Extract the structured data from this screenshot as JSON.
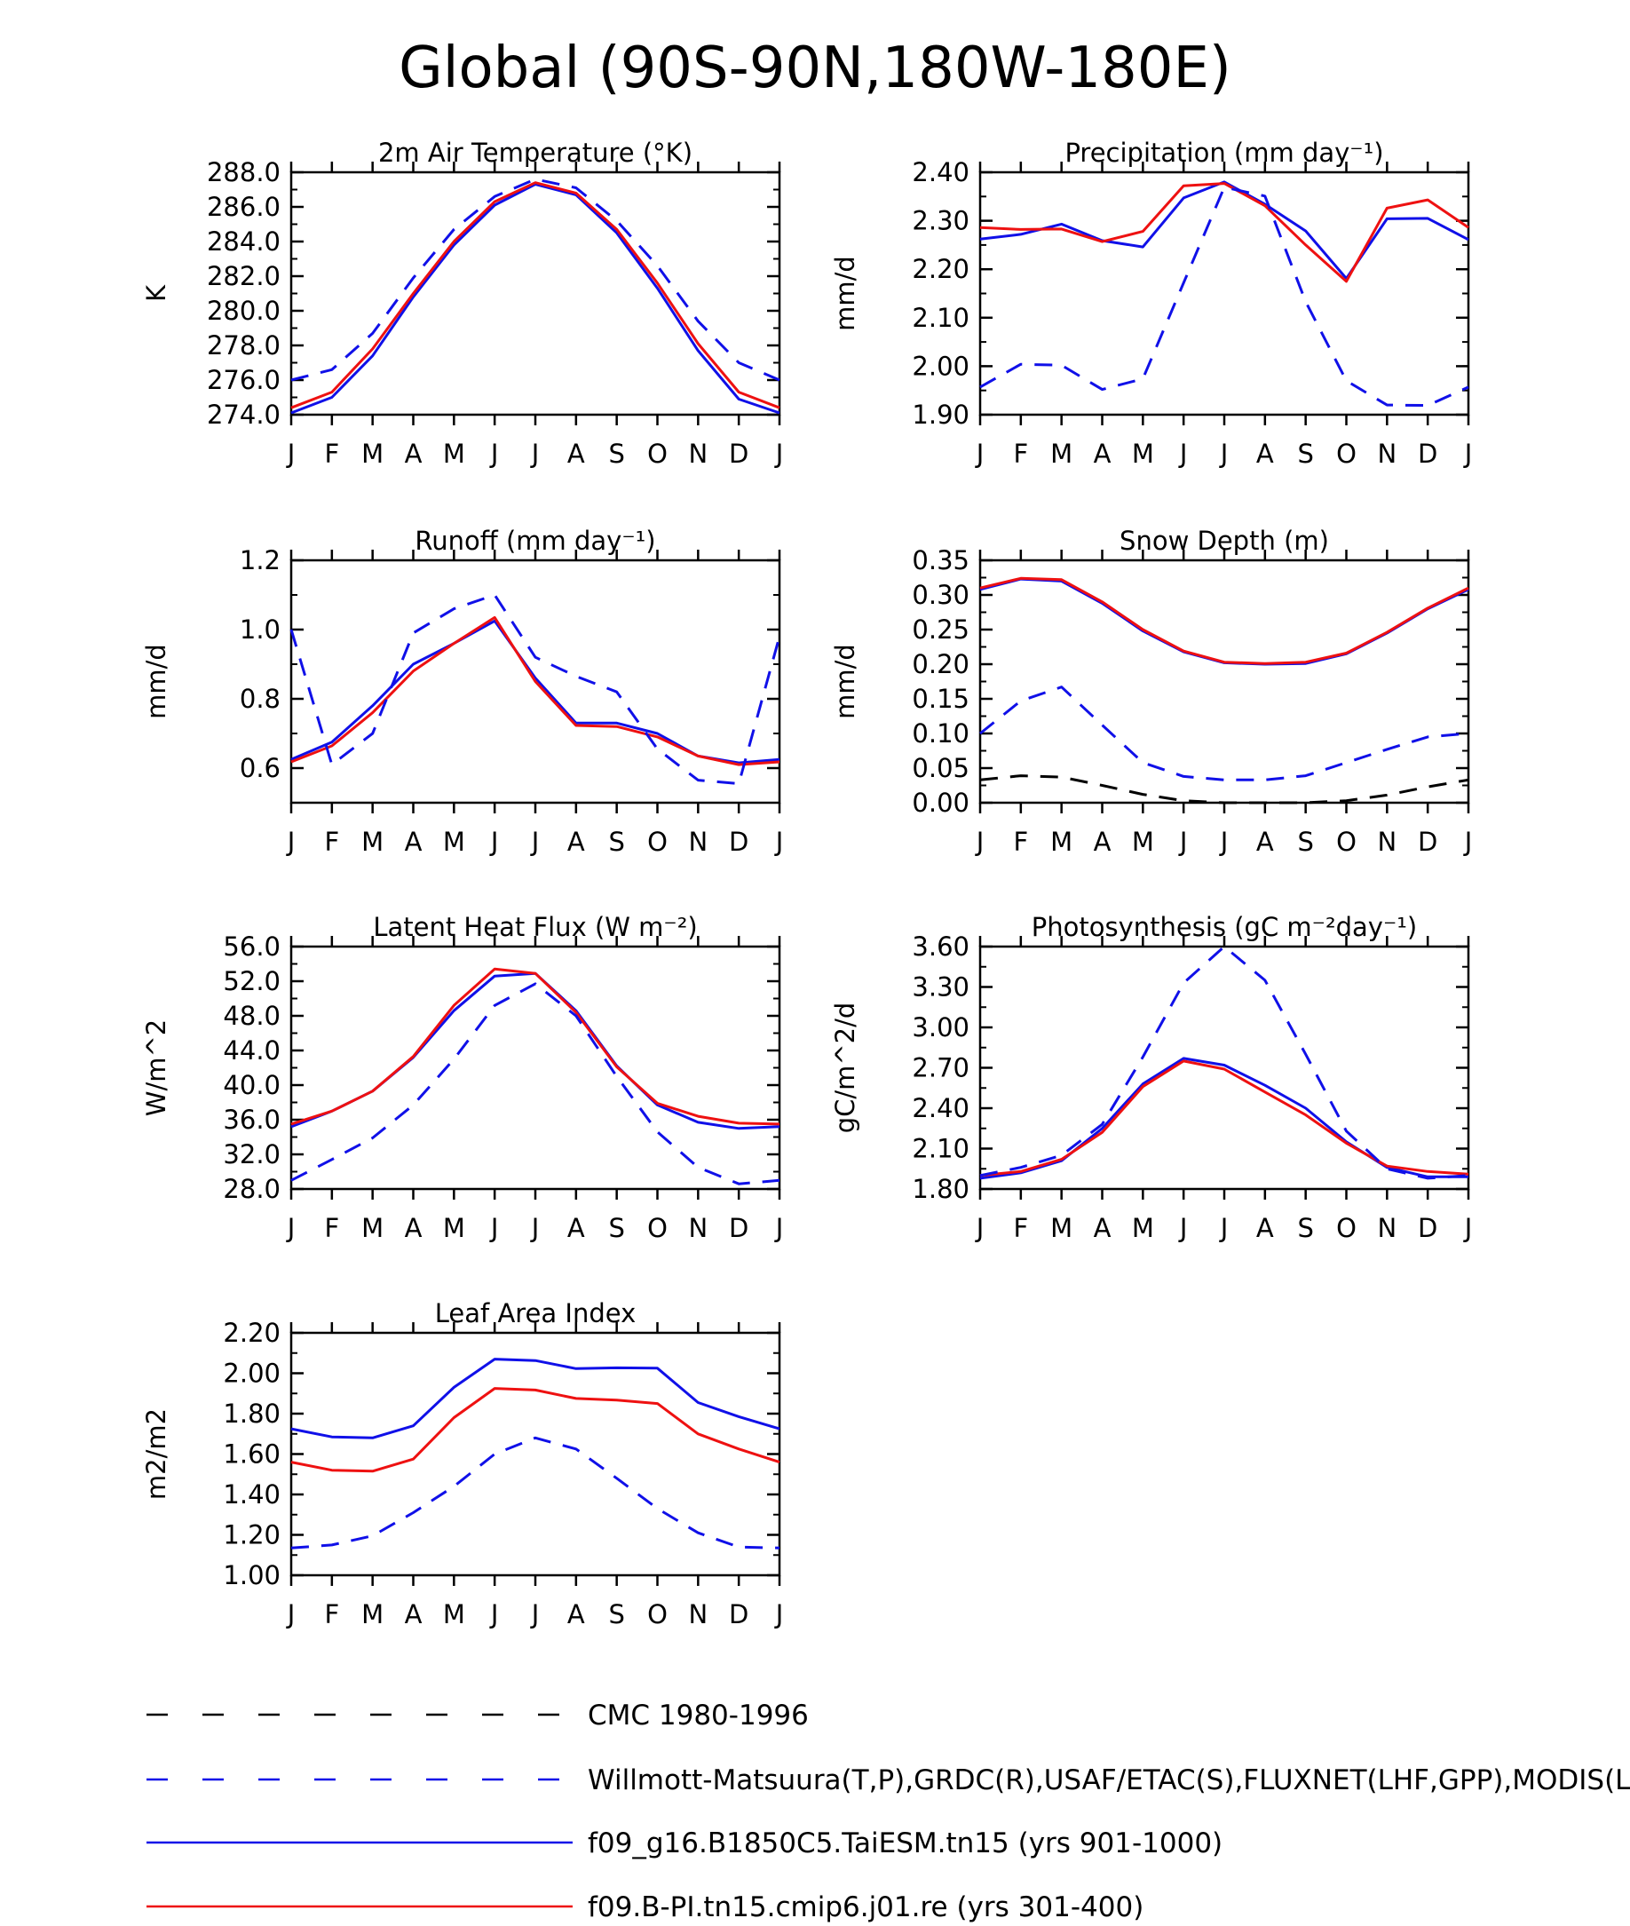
{
  "page_title": "Global (90S-90N,180W-180E)",
  "colors": {
    "model_a": "#1010e8",
    "model_b": "#ee1111",
    "obs": "#1010e8",
    "cmc": "#000000"
  },
  "legend": [
    {
      "label": "CMC 1980-1996",
      "color": "#000000",
      "dash": true
    },
    {
      "label": "Willmott-Matsuura(T,P),GRDC(R),USAF/ETAC(S),FLUXNET(LHF,GPP),MODIS(LAI)",
      "color": "#1010e8",
      "dash": true
    },
    {
      "label": "f09_g16.B1850C5.TaiESM.tn15 (yrs 901-1000)",
      "color": "#1010e8",
      "dash": false
    },
    {
      "label": "f09.B-PI.tn15.cmip6.j01.re (yrs 301-400)",
      "color": "#ee1111",
      "dash": false
    }
  ],
  "chart_data": [
    {
      "type": "line",
      "title": "2m Air Temperature (°K)",
      "ylabel": "K",
      "x": [
        "J",
        "F",
        "M",
        "A",
        "M",
        "J",
        "J",
        "A",
        "S",
        "O",
        "N",
        "D",
        "J"
      ],
      "ylim": [
        274.0,
        288.0
      ],
      "yticks": [
        "274.0",
        "276.0",
        "278.0",
        "280.0",
        "282.0",
        "284.0",
        "286.0",
        "288.0"
      ],
      "series": [
        {
          "color": "#1010e8",
          "dash": false,
          "values": [
            274.1,
            275.0,
            277.4,
            280.8,
            283.8,
            286.1,
            287.3,
            286.7,
            284.5,
            281.3,
            277.7,
            274.9,
            274.1
          ]
        },
        {
          "color": "#ee1111",
          "dash": false,
          "values": [
            274.4,
            275.3,
            277.8,
            281.0,
            284.0,
            286.3,
            287.4,
            286.8,
            284.7,
            281.6,
            278.1,
            275.3,
            274.4
          ]
        },
        {
          "color": "#1010e8",
          "dash": true,
          "values": [
            276.0,
            276.6,
            278.7,
            281.9,
            284.7,
            286.6,
            287.6,
            287.1,
            285.2,
            282.6,
            279.4,
            277.0,
            276.0
          ]
        }
      ]
    },
    {
      "type": "line",
      "title": "Precipitation (mm day⁻¹)",
      "ylabel": "mm/d",
      "x": [
        "J",
        "F",
        "M",
        "A",
        "M",
        "J",
        "J",
        "A",
        "S",
        "O",
        "N",
        "D",
        "J"
      ],
      "ylim": [
        1.9,
        2.4
      ],
      "yticks": [
        "1.90",
        "2.00",
        "2.10",
        "2.20",
        "2.30",
        "2.40"
      ],
      "series": [
        {
          "color": "#1010e8",
          "dash": false,
          "values": [
            2.262,
            2.272,
            2.293,
            2.259,
            2.246,
            2.347,
            2.38,
            2.334,
            2.279,
            2.181,
            2.304,
            2.305,
            2.261
          ]
        },
        {
          "color": "#ee1111",
          "dash": false,
          "values": [
            2.286,
            2.282,
            2.283,
            2.257,
            2.278,
            2.372,
            2.377,
            2.331,
            2.25,
            2.175,
            2.326,
            2.343,
            2.286
          ]
        },
        {
          "color": "#1010e8",
          "dash": true,
          "values": [
            1.957,
            2.004,
            2.002,
            1.952,
            1.974,
            2.172,
            2.369,
            2.351,
            2.133,
            1.97,
            1.92,
            1.919,
            1.957
          ]
        }
      ]
    },
    {
      "type": "line",
      "title": "Runoff (mm day⁻¹)",
      "ylabel": "mm/d",
      "x": [
        "J",
        "F",
        "M",
        "A",
        "M",
        "J",
        "J",
        "A",
        "S",
        "O",
        "N",
        "D",
        "J"
      ],
      "ylim": [
        0.5,
        1.2
      ],
      "yticks": [
        "0.6",
        "0.8",
        "1.0",
        "1.2"
      ],
      "series": [
        {
          "color": "#1010e8",
          "dash": false,
          "values": [
            0.625,
            0.675,
            0.78,
            0.9,
            0.96,
            1.025,
            0.86,
            0.73,
            0.73,
            0.7,
            0.635,
            0.615,
            0.625
          ]
        },
        {
          "color": "#ee1111",
          "dash": false,
          "values": [
            0.618,
            0.664,
            0.76,
            0.88,
            0.96,
            1.035,
            0.85,
            0.723,
            0.72,
            0.69,
            0.635,
            0.61,
            0.618
          ]
        },
        {
          "color": "#1010e8",
          "dash": true,
          "values": [
            1.0,
            0.61,
            0.7,
            0.99,
            1.06,
            1.1,
            0.92,
            0.865,
            0.82,
            0.655,
            0.565,
            0.555,
            0.98
          ]
        }
      ]
    },
    {
      "type": "line",
      "title": "Snow Depth (m)",
      "ylabel": "mm/d",
      "x": [
        "J",
        "F",
        "M",
        "A",
        "M",
        "J",
        "J",
        "A",
        "S",
        "O",
        "N",
        "D",
        "J"
      ],
      "ylim": [
        0.0,
        0.35
      ],
      "yticks": [
        "0.00",
        "0.05",
        "0.10",
        "0.15",
        "0.20",
        "0.25",
        "0.30",
        "0.35"
      ],
      "series": [
        {
          "color": "#1010e8",
          "dash": false,
          "values": [
            0.308,
            0.323,
            0.32,
            0.288,
            0.248,
            0.218,
            0.202,
            0.2,
            0.201,
            0.215,
            0.245,
            0.28,
            0.308
          ]
        },
        {
          "color": "#ee1111",
          "dash": false,
          "values": [
            0.31,
            0.324,
            0.322,
            0.29,
            0.25,
            0.219,
            0.203,
            0.201,
            0.203,
            0.216,
            0.246,
            0.281,
            0.31
          ]
        },
        {
          "color": "#1010e8",
          "dash": true,
          "values": [
            0.1,
            0.147,
            0.167,
            0.112,
            0.058,
            0.038,
            0.033,
            0.033,
            0.039,
            0.058,
            0.077,
            0.095,
            0.1
          ]
        },
        {
          "color": "#000000",
          "dash": true,
          "values": [
            0.033,
            0.039,
            0.037,
            0.025,
            0.012,
            0.003,
            0.0,
            0.0,
            0.0,
            0.003,
            0.011,
            0.023,
            0.033
          ]
        }
      ]
    },
    {
      "type": "line",
      "title": "Latent Heat Flux (W m⁻²)",
      "ylabel": "W/m^2",
      "x": [
        "J",
        "F",
        "M",
        "A",
        "M",
        "J",
        "J",
        "A",
        "S",
        "O",
        "N",
        "D",
        "J"
      ],
      "ylim": [
        28.0,
        56.0
      ],
      "yticks": [
        "28.0",
        "32.0",
        "36.0",
        "40.0",
        "44.0",
        "48.0",
        "52.0",
        "56.0"
      ],
      "series": [
        {
          "color": "#1010e8",
          "dash": false,
          "values": [
            35.2,
            37.0,
            39.3,
            43.2,
            48.6,
            52.6,
            52.9,
            48.6,
            42.2,
            37.7,
            35.7,
            35.0,
            35.2
          ]
        },
        {
          "color": "#ee1111",
          "dash": false,
          "values": [
            35.5,
            37.0,
            39.3,
            43.3,
            49.2,
            53.4,
            52.9,
            48.4,
            42.1,
            37.9,
            36.4,
            35.6,
            35.5
          ]
        },
        {
          "color": "#1010e8",
          "dash": true,
          "values": [
            29.0,
            31.4,
            33.9,
            37.7,
            43.0,
            49.2,
            51.7,
            48.0,
            41.0,
            34.6,
            30.5,
            28.6,
            29.0
          ]
        }
      ]
    },
    {
      "type": "line",
      "title": "Photosynthesis (gC m⁻²day⁻¹)",
      "ylabel": "gC/m^2/d",
      "x": [
        "J",
        "F",
        "M",
        "A",
        "M",
        "J",
        "J",
        "A",
        "S",
        "O",
        "N",
        "D",
        "J"
      ],
      "ylim": [
        1.8,
        3.6
      ],
      "yticks": [
        "1.80",
        "2.10",
        "2.40",
        "2.70",
        "3.00",
        "3.30",
        "3.60"
      ],
      "series": [
        {
          "color": "#1010e8",
          "dash": false,
          "values": [
            1.88,
            1.92,
            2.01,
            2.25,
            2.58,
            2.77,
            2.72,
            2.57,
            2.4,
            2.15,
            1.96,
            1.89,
            1.89
          ]
        },
        {
          "color": "#ee1111",
          "dash": false,
          "values": [
            1.9,
            1.93,
            2.02,
            2.22,
            2.56,
            2.75,
            2.69,
            2.52,
            2.35,
            2.14,
            1.97,
            1.93,
            1.91
          ]
        },
        {
          "color": "#1010e8",
          "dash": true,
          "values": [
            1.9,
            1.96,
            2.05,
            2.28,
            2.78,
            3.33,
            3.6,
            3.35,
            2.8,
            2.23,
            1.95,
            1.88,
            1.9
          ]
        }
      ]
    },
    {
      "type": "line",
      "title": "Leaf Area Index",
      "ylabel": "m2/m2",
      "x": [
        "J",
        "F",
        "M",
        "A",
        "M",
        "J",
        "J",
        "A",
        "S",
        "O",
        "N",
        "D",
        "J"
      ],
      "ylim": [
        1.0,
        2.2
      ],
      "yticks": [
        "1.00",
        "1.20",
        "1.40",
        "1.60",
        "1.80",
        "2.00",
        "2.20"
      ],
      "series": [
        {
          "color": "#1010e8",
          "dash": false,
          "values": [
            1.725,
            1.685,
            1.68,
            1.74,
            1.93,
            2.07,
            2.063,
            2.023,
            2.027,
            2.025,
            1.855,
            1.785,
            1.725
          ]
        },
        {
          "color": "#ee1111",
          "dash": false,
          "values": [
            1.56,
            1.52,
            1.515,
            1.575,
            1.78,
            1.925,
            1.917,
            1.875,
            1.867,
            1.85,
            1.7,
            1.625,
            1.56
          ]
        },
        {
          "color": "#1010e8",
          "dash": true,
          "values": [
            1.135,
            1.15,
            1.195,
            1.31,
            1.44,
            1.6,
            1.68,
            1.625,
            1.48,
            1.33,
            1.21,
            1.14,
            1.135
          ]
        }
      ]
    }
  ]
}
